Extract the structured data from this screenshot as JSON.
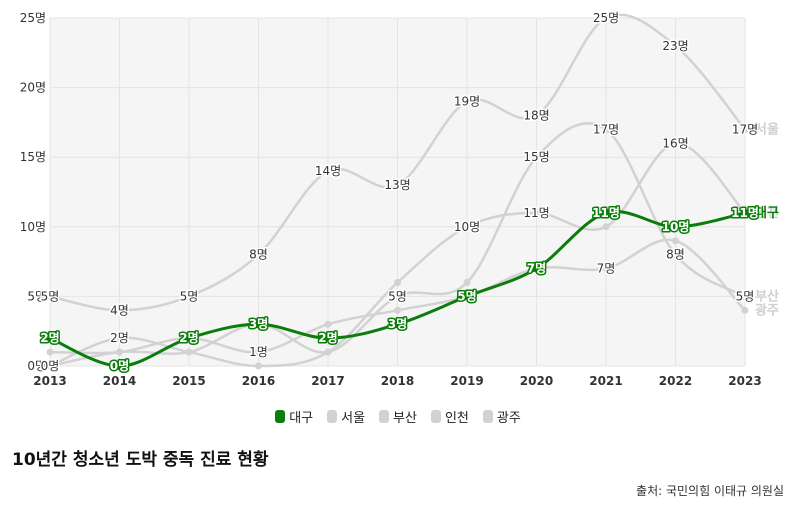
{
  "title": "10년간 청소년 도박 중독 진료 현황",
  "source": "출처: 국민의힘 이태규 의원실",
  "chart_data": {
    "type": "line",
    "x": [
      "2013",
      "2014",
      "2015",
      "2016",
      "2017",
      "2018",
      "2019",
      "2020",
      "2021",
      "2022",
      "2023"
    ],
    "ylim": [
      0,
      25
    ],
    "yticks": [
      0,
      5,
      10,
      15,
      20,
      25
    ],
    "ytick_labels": [
      "0명",
      "5명",
      "10명",
      "15명",
      "20명",
      "25명"
    ],
    "unit": "명",
    "grid": true,
    "legend_position": "bottom",
    "series": [
      {
        "name": "서울",
        "values": [
          5,
          4,
          5,
          8,
          14,
          13,
          19,
          18,
          25,
          23,
          17
        ],
        "color": "#d2d2d2",
        "highlight": false
      },
      {
        "name": "부산",
        "values": [
          0,
          1,
          1,
          3,
          1,
          5,
          6,
          15,
          17,
          8,
          5
        ],
        "color": "#d2d2d2",
        "highlight": false
      },
      {
        "name": "인천",
        "values": [
          0,
          2,
          1,
          0,
          1,
          6,
          10,
          11,
          10,
          16,
          11
        ],
        "color": "#d2d2d2",
        "highlight": false
      },
      {
        "name": "광주",
        "values": [
          1,
          1,
          2,
          1,
          3,
          4,
          5,
          7,
          7,
          9,
          4
        ],
        "color": "#d2d2d2",
        "highlight": false
      },
      {
        "name": "대구",
        "values": [
          2,
          0,
          2,
          3,
          2,
          3,
          5,
          7,
          11,
          10,
          11
        ],
        "color": "#0a7d0a",
        "highlight": true
      }
    ],
    "point_labels": [
      {
        "year": "2013",
        "value": 5
      },
      {
        "year": "2014",
        "value": 4
      },
      {
        "year": "2015",
        "value": 5
      },
      {
        "year": "2016",
        "value": 8
      },
      {
        "year": "2017",
        "value": 14
      },
      {
        "year": "2018",
        "value": 13
      },
      {
        "year": "2019",
        "value": 19
      },
      {
        "year": "2020",
        "value": 18
      },
      {
        "year": "2021",
        "value": 25
      },
      {
        "year": "2022",
        "value": 23
      },
      {
        "year": "2023",
        "value": 17
      },
      {
        "year": "2013",
        "value": 0
      },
      {
        "year": "2014",
        "value": 2
      },
      {
        "year": "2016",
        "value": 1
      },
      {
        "year": "2018",
        "value": 5
      },
      {
        "year": "2019",
        "value": 10
      },
      {
        "year": "2020",
        "value": 15
      },
      {
        "year": "2020",
        "value": 11
      },
      {
        "year": "2021",
        "value": 17
      },
      {
        "year": "2021",
        "value": 7
      },
      {
        "year": "2022",
        "value": 16
      },
      {
        "year": "2022",
        "value": 8
      },
      {
        "year": "2023",
        "value": 5
      }
    ]
  }
}
